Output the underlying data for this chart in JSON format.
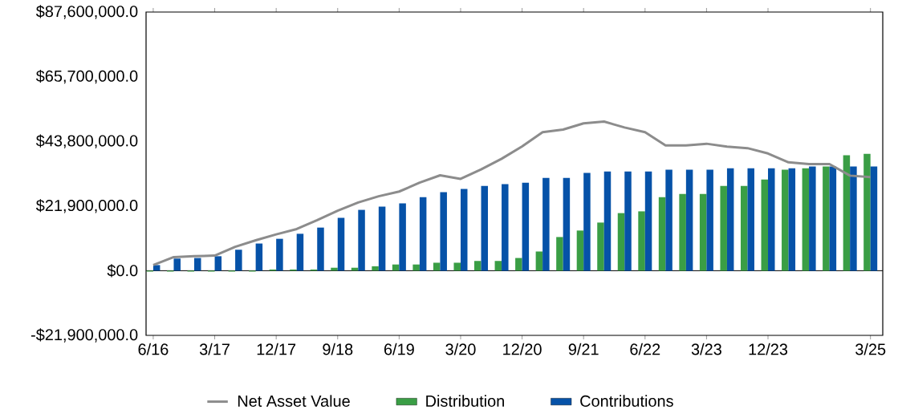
{
  "chart_data": {
    "type": "bar",
    "categories": [
      "6/16",
      null,
      null,
      "3/17",
      null,
      null,
      "12/17",
      null,
      null,
      "9/18",
      null,
      null,
      "6/19",
      null,
      null,
      "3/20",
      null,
      null,
      "12/20",
      null,
      null,
      "9/21",
      null,
      null,
      "6/22",
      null,
      null,
      "3/23",
      null,
      null,
      "12/23",
      null,
      null,
      null,
      null,
      "3/25"
    ],
    "series": [
      {
        "name": "Net Asset Value",
        "type": "line",
        "color": "#8c8c8c",
        "values": [
          1900000,
          4600000,
          4900000,
          5100000,
          8100000,
          10300000,
          12300000,
          14100000,
          17100000,
          20300000,
          23100000,
          25200000,
          26800000,
          29800000,
          32300000,
          31100000,
          34300000,
          37900000,
          42100000,
          46900000,
          47800000,
          49900000,
          50500000,
          48500000,
          46900000,
          42400000,
          42400000,
          43000000,
          42000000,
          41500000,
          39700000,
          36700000,
          36100000,
          36100000,
          32200000,
          31700000
        ]
      },
      {
        "name": "Distribution",
        "color": "#3a9e45",
        "values": [
          -300000,
          -300000,
          -300000,
          -300000,
          -300000,
          -300000,
          400000,
          400000,
          400000,
          1000000,
          1000000,
          1500000,
          2100000,
          2100000,
          2700000,
          2700000,
          3300000,
          3300000,
          4300000,
          6500000,
          11400000,
          13600000,
          16300000,
          19500000,
          20100000,
          24900000,
          26000000,
          26000000,
          28700000,
          28700000,
          30900000,
          34200000,
          34700000,
          35300000,
          39100000,
          39600000
        ]
      },
      {
        "name": "Contributions",
        "color": "#0652a8",
        "values": [
          1900000,
          4100000,
          4300000,
          4900000,
          7100000,
          9200000,
          10800000,
          12500000,
          14600000,
          17900000,
          20600000,
          21700000,
          22800000,
          24900000,
          26600000,
          27700000,
          28700000,
          29300000,
          29800000,
          31400000,
          31400000,
          33100000,
          33600000,
          33600000,
          33600000,
          34200000,
          34200000,
          34200000,
          34700000,
          34700000,
          34700000,
          34700000,
          35300000,
          35300000,
          35300000,
          35300000
        ]
      }
    ],
    "ylim": [
      -21900000,
      87600000
    ],
    "yticks": [
      {
        "value": -21900000,
        "label": "-$21,900,000.0"
      },
      {
        "value": 0,
        "label": "$0.0"
      },
      {
        "value": 21900000,
        "label": "$21,900,000.0"
      },
      {
        "value": 43800000,
        "label": "$43,800,000.0"
      },
      {
        "value": 65700000,
        "label": "$65,700,000.0"
      },
      {
        "value": 87600000,
        "label": "$87,600,000.0"
      }
    ],
    "ref_lines": [
      {
        "axis": "y",
        "value": 0,
        "color": "#000000"
      }
    ],
    "legend": "bottom",
    "grid": false,
    "marker": "none",
    "line_style": "solid"
  }
}
